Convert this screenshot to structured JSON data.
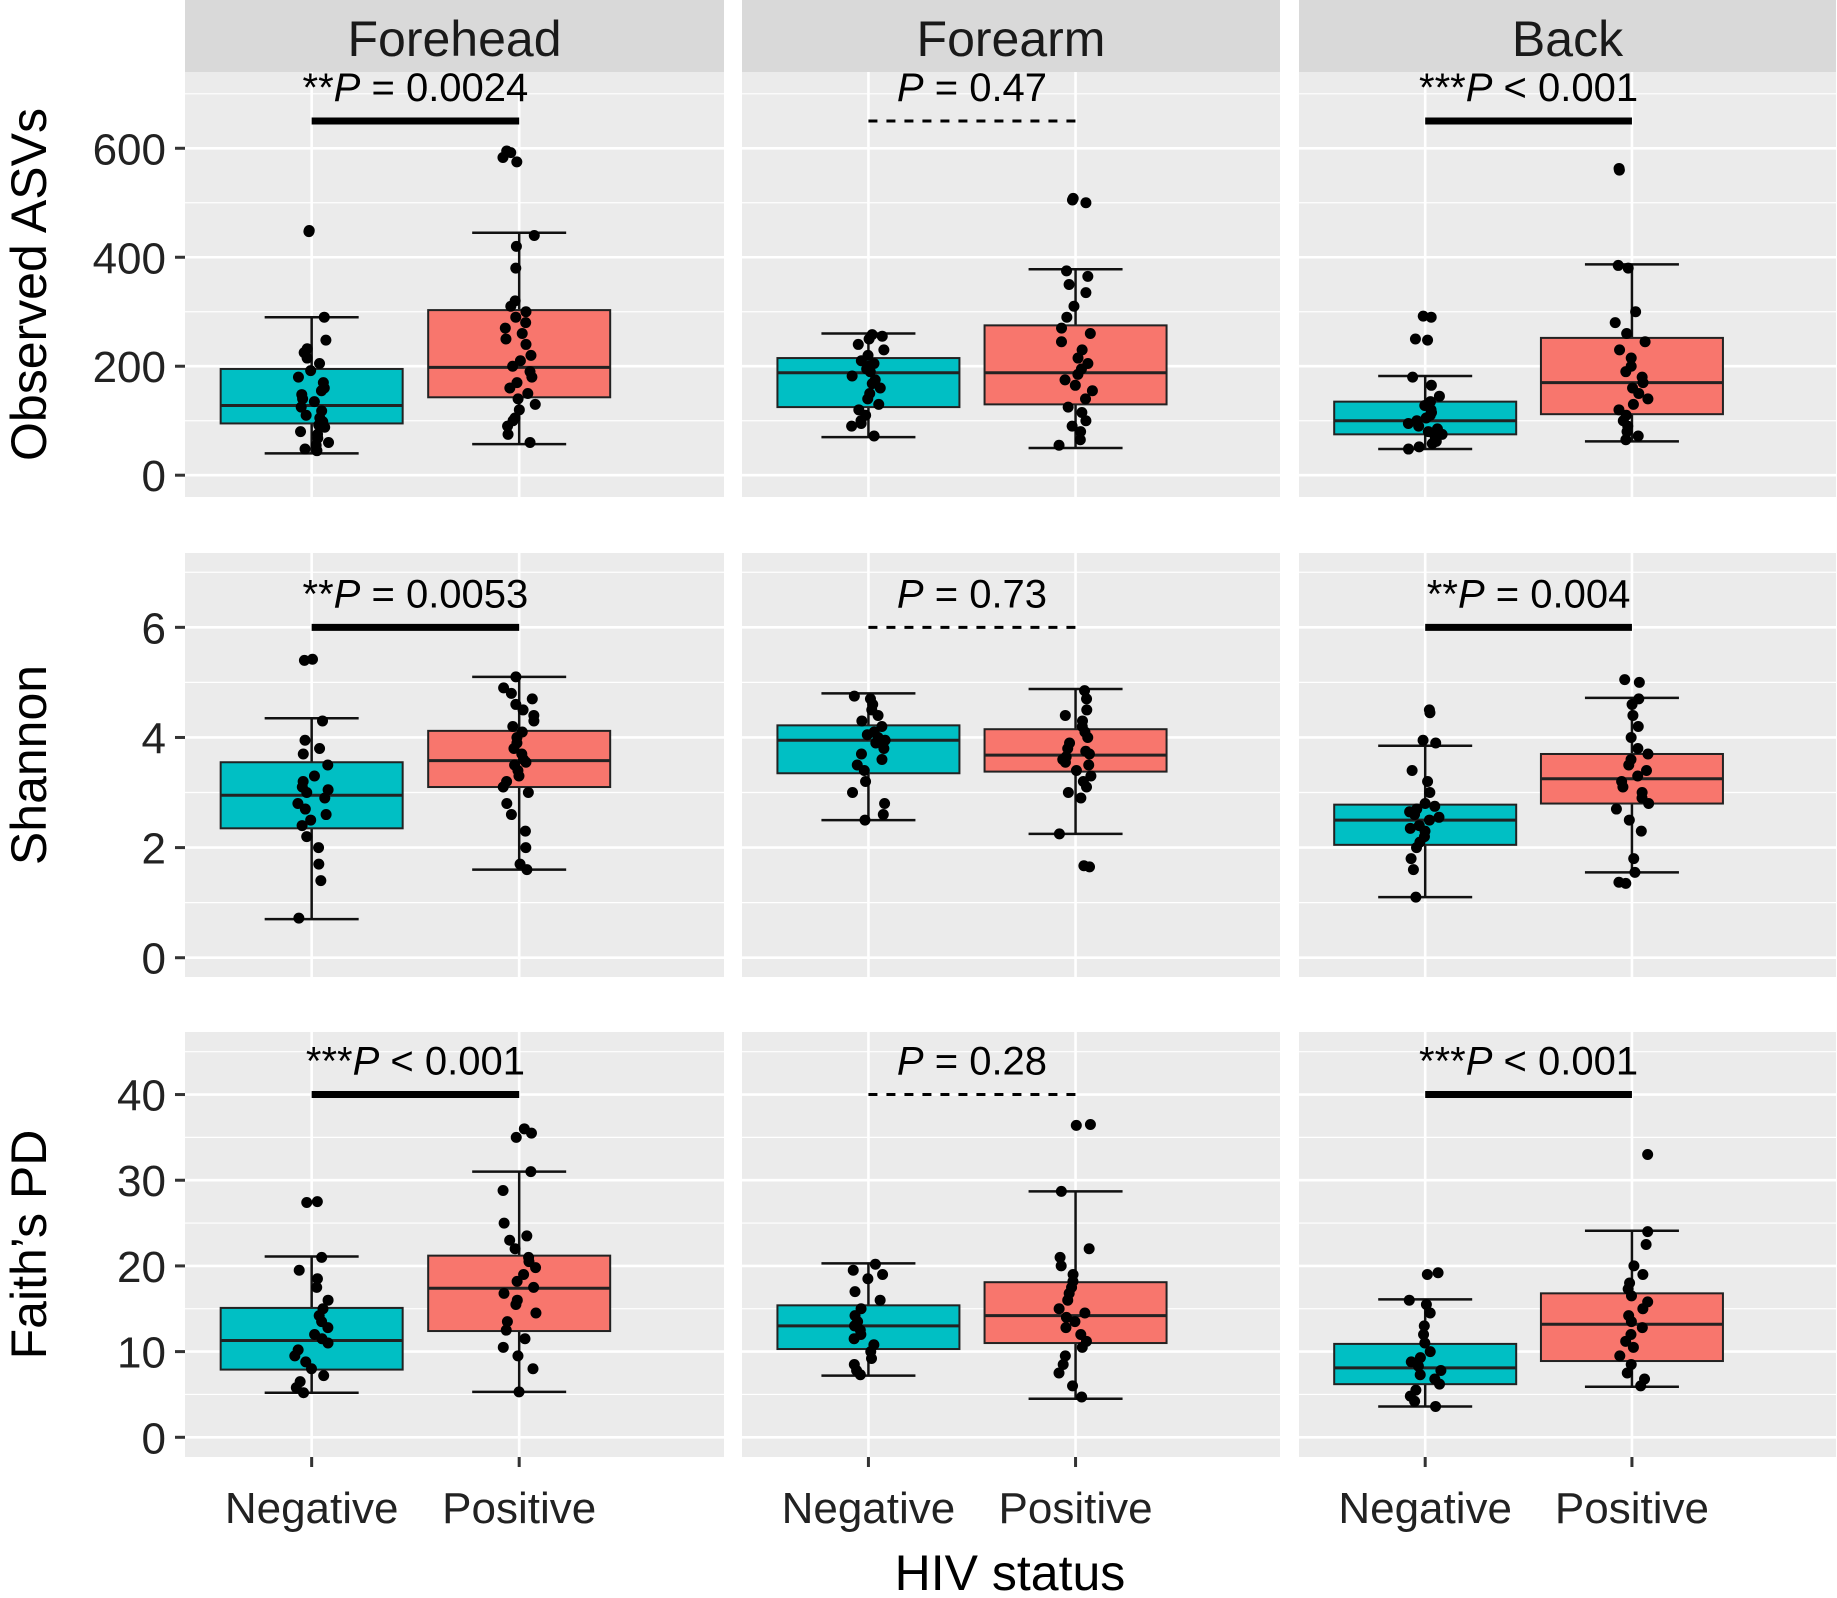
{
  "chart_data": {
    "type": "boxplot",
    "xlabel": "HIV status",
    "categories": [
      "Negative",
      "Positive"
    ],
    "colors": {
      "Negative": "#00BFC4",
      "Positive": "#F8766D",
      "panel_bg": "#EBEBEB",
      "strip_bg": "#D9D9D9",
      "grid": "#FFFFFF"
    },
    "facets": [
      "Forehead",
      "Forearm",
      "Back"
    ],
    "metrics": [
      {
        "ylabel": "Observed ASVs",
        "ylim": [
          -40,
          740
        ],
        "yticks": [
          0,
          200,
          400,
          600
        ],
        "yticklabels": [
          "0",
          "200",
          "400",
          "600"
        ],
        "minor_ticks": [
          100,
          300,
          500,
          700
        ],
        "annot_level": 650,
        "panels": [
          {
            "facet": "Forehead",
            "annotation": {
              "stars": "**",
              "rest": " = 0.0024",
              "significant": true
            },
            "boxes": [
              {
                "group": "Negative",
                "whislo": 40,
                "q1": 95,
                "med": 128,
                "q3": 195,
                "whishi": 290,
                "points": [
                  45,
                  48,
                  55,
                  60,
                  68,
                  75,
                  80,
                  88,
                  92,
                  98,
                  105,
                  110,
                  118,
                  125,
                  135,
                  140,
                  148,
                  155,
                  160,
                  170,
                  180,
                  192,
                  205,
                  215,
                  225,
                  232,
                  248,
                  290,
                  447,
                  449
                ]
              },
              {
                "group": "Positive",
                "whislo": 57,
                "q1": 143,
                "med": 198,
                "q3": 303,
                "whishi": 445,
                "points": [
                  60,
                  75,
                  90,
                  100,
                  105,
                  120,
                  130,
                  140,
                  150,
                  160,
                  170,
                  180,
                  190,
                  200,
                  210,
                  220,
                  240,
                  250,
                  260,
                  270,
                  280,
                  290,
                  300,
                  310,
                  320,
                  380,
                  420,
                  440,
                  575,
                  583,
                  592,
                  595
                ]
              }
            ]
          },
          {
            "facet": "Forearm",
            "annotation": {
              "stars": "",
              "rest": " = 0.47",
              "significant": false
            },
            "boxes": [
              {
                "group": "Negative",
                "whislo": 70,
                "q1": 125,
                "med": 188,
                "q3": 215,
                "whishi": 260,
                "points": [
                  72,
                  90,
                  95,
                  100,
                  110,
                  120,
                  130,
                  140,
                  150,
                  160,
                  168,
                  175,
                  182,
                  190,
                  195,
                  200,
                  205,
                  210,
                  220,
                  230,
                  240,
                  250,
                  255,
                  258
                ]
              },
              {
                "group": "Positive",
                "whislo": 50,
                "q1": 130,
                "med": 188,
                "q3": 275,
                "whishi": 378,
                "points": [
                  55,
                  65,
                  80,
                  90,
                  100,
                  115,
                  125,
                  140,
                  155,
                  165,
                  175,
                  185,
                  195,
                  205,
                  215,
                  230,
                  245,
                  260,
                  270,
                  290,
                  310,
                  335,
                  350,
                  365,
                  375,
                  500,
                  505,
                  508
                ]
              }
            ]
          },
          {
            "facet": "Back",
            "annotation": {
              "stars": "***",
              "rest": " < 0.001",
              "significant": true
            },
            "boxes": [
              {
                "group": "Negative",
                "whislo": 48,
                "q1": 75,
                "med": 100,
                "q3": 135,
                "whishi": 182,
                "points": [
                  48,
                  52,
                  58,
                  62,
                  70,
                  75,
                  80,
                  85,
                  90,
                  95,
                  100,
                  105,
                  110,
                  115,
                  120,
                  128,
                  135,
                  145,
                  165,
                  180,
                  248,
                  250,
                  290,
                  292
                ]
              },
              {
                "group": "Positive",
                "whislo": 62,
                "q1": 112,
                "med": 170,
                "q3": 252,
                "whishi": 387,
                "points": [
                  65,
                  72,
                  80,
                  90,
                  100,
                  110,
                  120,
                  130,
                  140,
                  150,
                  160,
                  170,
                  180,
                  190,
                  200,
                  215,
                  230,
                  245,
                  260,
                  280,
                  300,
                  380,
                  385,
                  560,
                  563
                ]
              }
            ]
          }
        ]
      },
      {
        "ylabel": "Shannon",
        "ylim": [
          -0.35,
          7.35
        ],
        "yticks": [
          0,
          2,
          4,
          6
        ],
        "yticklabels": [
          "0",
          "2",
          "4",
          "6"
        ],
        "minor_ticks": [
          1,
          3,
          5,
          7
        ],
        "annot_level": 6.0,
        "panels": [
          {
            "facet": "Forehead",
            "annotation": {
              "stars": "**",
              "rest": " = 0.0053",
              "significant": true
            },
            "boxes": [
              {
                "group": "Negative",
                "whislo": 0.7,
                "q1": 2.35,
                "med": 2.95,
                "q3": 3.55,
                "whishi": 4.35,
                "points": [
                  0.72,
                  1.4,
                  1.7,
                  2.0,
                  2.2,
                  2.4,
                  2.5,
                  2.6,
                  2.7,
                  2.8,
                  2.9,
                  3.0,
                  3.05,
                  3.1,
                  3.2,
                  3.3,
                  3.5,
                  3.7,
                  3.8,
                  3.95,
                  4.3,
                  5.4,
                  5.42
                ]
              },
              {
                "group": "Positive",
                "whislo": 1.6,
                "q1": 3.1,
                "med": 3.58,
                "q3": 4.12,
                "whishi": 5.1,
                "points": [
                  1.6,
                  1.7,
                  2.0,
                  2.3,
                  2.6,
                  2.8,
                  3.0,
                  3.1,
                  3.2,
                  3.3,
                  3.4,
                  3.5,
                  3.55,
                  3.6,
                  3.7,
                  3.8,
                  3.9,
                  4.0,
                  4.1,
                  4.2,
                  4.3,
                  4.4,
                  4.5,
                  4.6,
                  4.7,
                  4.8,
                  4.9,
                  5.1
                ]
              }
            ]
          },
          {
            "facet": "Forearm",
            "annotation": {
              "stars": "",
              "rest": " = 0.73",
              "significant": false
            },
            "boxes": [
              {
                "group": "Negative",
                "whislo": 2.5,
                "q1": 3.35,
                "med": 3.95,
                "q3": 4.22,
                "whishi": 4.8,
                "points": [
                  2.5,
                  2.6,
                  2.8,
                  3.0,
                  3.2,
                  3.4,
                  3.5,
                  3.6,
                  3.7,
                  3.8,
                  3.9,
                  3.95,
                  4.0,
                  4.05,
                  4.1,
                  4.2,
                  4.3,
                  4.4,
                  4.5,
                  4.6,
                  4.7,
                  4.75
                ]
              },
              {
                "group": "Positive",
                "whislo": 2.25,
                "q1": 3.38,
                "med": 3.68,
                "q3": 4.15,
                "whishi": 4.88,
                "points": [
                  1.65,
                  1.67,
                  2.25,
                  2.9,
                  3.0,
                  3.1,
                  3.2,
                  3.3,
                  3.4,
                  3.5,
                  3.55,
                  3.6,
                  3.65,
                  3.7,
                  3.75,
                  3.8,
                  3.9,
                  4.0,
                  4.1,
                  4.2,
                  4.3,
                  4.4,
                  4.5,
                  4.7,
                  4.85
                ]
              }
            ]
          },
          {
            "facet": "Back",
            "annotation": {
              "stars": "**",
              "rest": " = 0.004",
              "significant": true
            },
            "boxes": [
              {
                "group": "Negative",
                "whislo": 1.1,
                "q1": 2.05,
                "med": 2.5,
                "q3": 2.78,
                "whishi": 3.85,
                "points": [
                  1.1,
                  1.6,
                  1.8,
                  2.0,
                  2.1,
                  2.2,
                  2.3,
                  2.35,
                  2.4,
                  2.5,
                  2.55,
                  2.6,
                  2.65,
                  2.7,
                  2.75,
                  2.8,
                  3.0,
                  3.2,
                  3.4,
                  3.9,
                  3.95,
                  4.45,
                  4.5
                ]
              },
              {
                "group": "Positive",
                "whislo": 1.55,
                "q1": 2.8,
                "med": 3.25,
                "q3": 3.7,
                "whishi": 4.72,
                "points": [
                  1.35,
                  1.37,
                  1.55,
                  1.8,
                  2.3,
                  2.5,
                  2.7,
                  2.8,
                  2.9,
                  3.0,
                  3.1,
                  3.2,
                  3.3,
                  3.4,
                  3.5,
                  3.6,
                  3.7,
                  3.8,
                  4.0,
                  4.2,
                  4.4,
                  4.6,
                  4.7,
                  5.0,
                  5.05
                ]
              }
            ]
          }
        ]
      },
      {
        "ylabel": "Faith’s PD",
        "ylim": [
          -2.3,
          47.3
        ],
        "yticks": [
          0,
          10,
          20,
          30,
          40
        ],
        "yticklabels": [
          "0",
          "10",
          "20",
          "30",
          "40"
        ],
        "minor_ticks": [
          5,
          15,
          25,
          35,
          45
        ],
        "annot_level": 40,
        "panels": [
          {
            "facet": "Forehead",
            "annotation": {
              "stars": "***",
              "rest": " < 0.001",
              "significant": true
            },
            "boxes": [
              {
                "group": "Negative",
                "whislo": 5.2,
                "q1": 7.9,
                "med": 11.3,
                "q3": 15.1,
                "whishi": 21.1,
                "points": [
                  5.2,
                  5.8,
                  6.5,
                  7.2,
                  8.0,
                  8.8,
                  9.5,
                  10.2,
                  11.0,
                  11.5,
                  12.0,
                  12.8,
                  13.5,
                  14.2,
                  15.0,
                  16.0,
                  17.5,
                  18.5,
                  19.5,
                  21.0,
                  27.4,
                  27.5
                ]
              },
              {
                "group": "Positive",
                "whislo": 5.3,
                "q1": 12.4,
                "med": 17.4,
                "q3": 21.2,
                "whishi": 31.0,
                "points": [
                  5.3,
                  8.0,
                  9.5,
                  10.5,
                  11.5,
                  12.5,
                  13.5,
                  14.5,
                  15.5,
                  16.0,
                  16.8,
                  17.5,
                  18.2,
                  19.0,
                  19.8,
                  20.5,
                  21.0,
                  22.0,
                  23.0,
                  23.5,
                  25.0,
                  28.8,
                  31.0,
                  35.0,
                  35.5,
                  36.0
                ]
              }
            ]
          },
          {
            "facet": "Forearm",
            "annotation": {
              "stars": "",
              "rest": " = 0.28",
              "significant": false
            },
            "boxes": [
              {
                "group": "Negative",
                "whislo": 7.2,
                "q1": 10.3,
                "med": 13.0,
                "q3": 15.4,
                "whishi": 20.3,
                "points": [
                  7.3,
                  7.8,
                  8.5,
                  9.2,
                  10.0,
                  10.8,
                  11.5,
                  12.0,
                  12.5,
                  13.0,
                  13.5,
                  14.2,
                  15.0,
                  16.0,
                  17.0,
                  18.5,
                  19.0,
                  19.5,
                  20.2
                ]
              },
              {
                "group": "Positive",
                "whislo": 4.5,
                "q1": 11.0,
                "med": 14.2,
                "q3": 18.1,
                "whishi": 28.7,
                "points": [
                  4.7,
                  6.0,
                  7.5,
                  8.5,
                  9.5,
                  10.5,
                  11.2,
                  12.0,
                  12.8,
                  13.5,
                  14.0,
                  14.5,
                  15.0,
                  16.0,
                  16.8,
                  17.5,
                  18.2,
                  19.0,
                  20.0,
                  21.0,
                  22.0,
                  28.7,
                  36.4,
                  36.5
                ]
              }
            ]
          },
          {
            "facet": "Back",
            "annotation": {
              "stars": "***",
              "rest": " < 0.001",
              "significant": true
            },
            "boxes": [
              {
                "group": "Negative",
                "whislo": 3.6,
                "q1": 6.2,
                "med": 8.1,
                "q3": 10.9,
                "whishi": 16.1,
                "points": [
                  3.6,
                  4.2,
                  4.8,
                  5.5,
                  6.2,
                  6.8,
                  7.3,
                  7.8,
                  8.3,
                  8.8,
                  9.3,
                  10.0,
                  11.0,
                  12.0,
                  13.0,
                  14.5,
                  15.5,
                  16.0,
                  19.0,
                  19.2
                ]
              },
              {
                "group": "Positive",
                "whislo": 5.9,
                "q1": 8.9,
                "med": 13.2,
                "q3": 16.8,
                "whishi": 24.1,
                "points": [
                  6.0,
                  6.8,
                  7.5,
                  8.5,
                  9.5,
                  10.5,
                  11.2,
                  12.0,
                  12.8,
                  13.5,
                  14.2,
                  15.0,
                  15.8,
                  16.5,
                  17.3,
                  18.0,
                  19.0,
                  20.0,
                  22.5,
                  24.0,
                  33.0
                ]
              }
            ]
          }
        ]
      }
    ]
  }
}
